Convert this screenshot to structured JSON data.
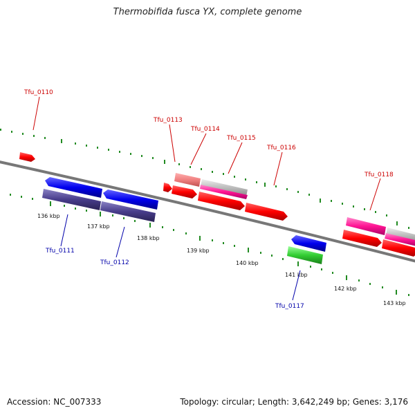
{
  "title": "Thermobifida fusca YX, complete genome",
  "footer": {
    "accession": "Accession: NC_007333",
    "summary": "Topology: circular; Length: 3,642,249 bp; Genes: 3,176"
  },
  "ticks": [
    "136 kbp",
    "137 kbp",
    "138 kbp",
    "139 kbp",
    "140 kbp",
    "141 kbp",
    "142 kbp",
    "143 kbp"
  ],
  "forward_labels": [
    "Tfu_0110",
    "Tfu_0113",
    "Tfu_0114",
    "Tfu_0115",
    "Tfu_0116",
    "Tfu_0118"
  ],
  "reverse_labels": [
    "Tfu_0111",
    "Tfu_0112",
    "Tfu_0117"
  ],
  "colors": {
    "forward_cds": "#ff0000",
    "reverse_cds": "#0000ee",
    "backbone": "#777777",
    "tick": "#228b22",
    "pink": "#ff1493",
    "light_red": "#f08080",
    "gray": "#bbbbbb",
    "navy": "#483d8b",
    "green": "#32cd32"
  }
}
